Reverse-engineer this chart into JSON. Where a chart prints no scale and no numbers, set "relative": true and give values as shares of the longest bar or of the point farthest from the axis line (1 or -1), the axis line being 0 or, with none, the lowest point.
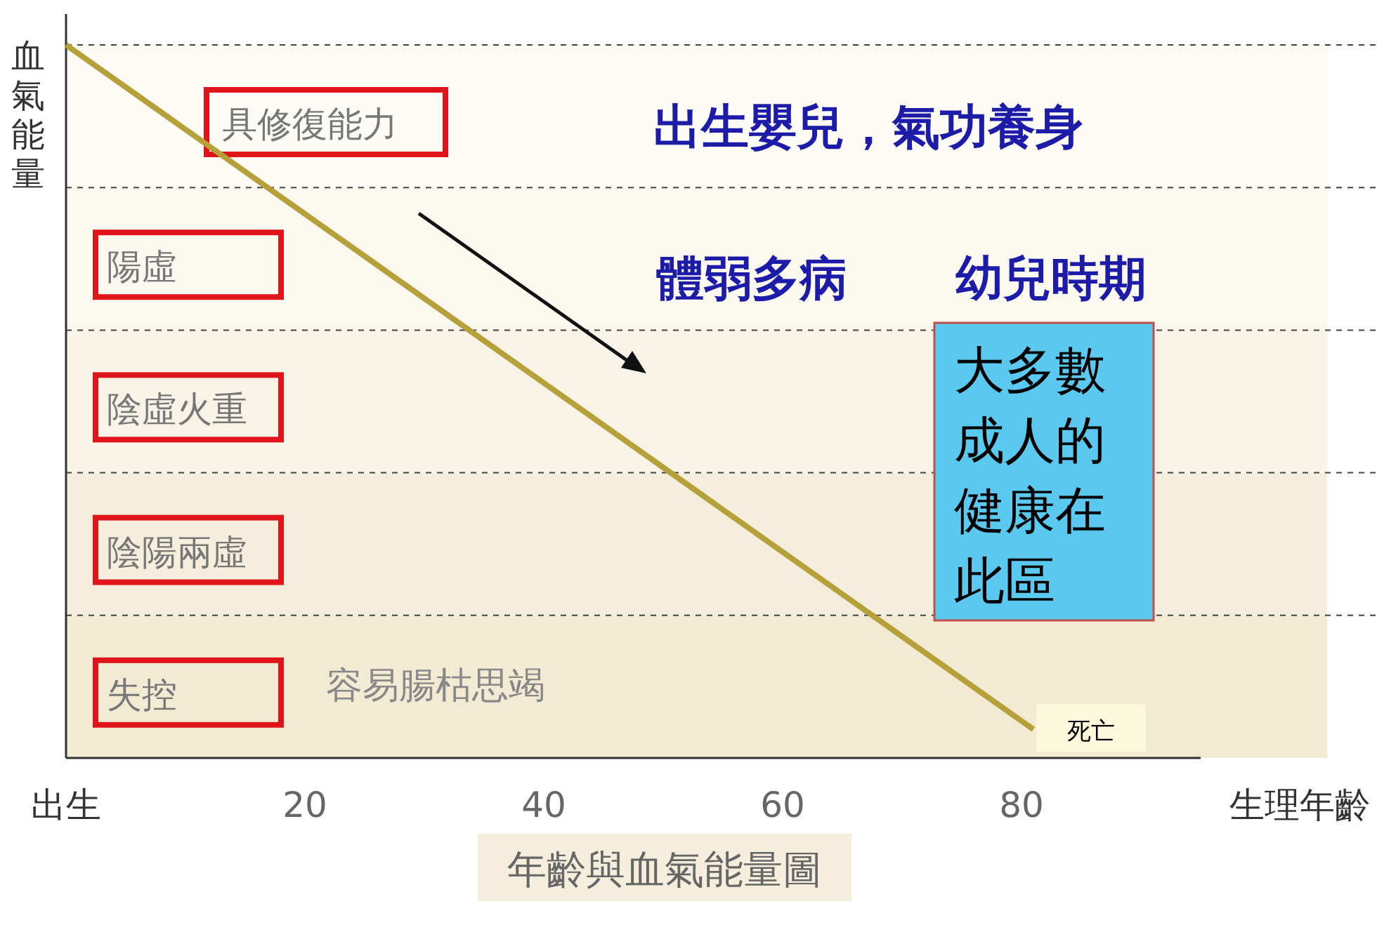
{
  "chart_data": {
    "type": "line",
    "relative": true,
    "title": "年齡與血氣能量圖",
    "xlabel": "生理年齡",
    "ylabel": "血氣能量",
    "x": [
      0,
      81
    ],
    "values": [
      1,
      0.04
    ],
    "color": "#b5a03a",
    "xlim": [
      0,
      95
    ],
    "xticks": [
      {
        "value": 0,
        "label": "出生"
      },
      20,
      40,
      60,
      80
    ],
    "bands": [
      {
        "axis": "y",
        "from": 0.8,
        "to": 1.0,
        "label": "具修復能力",
        "color": "#fdfbf6"
      },
      {
        "axis": "y",
        "from": 0.6,
        "to": 0.8,
        "label": "陽虛",
        "color": "#fbf8f0"
      },
      {
        "axis": "y",
        "from": 0.4,
        "to": 0.6,
        "label": "陰虛火重",
        "color": "#f8f3e6"
      },
      {
        "axis": "y",
        "from": 0.2,
        "to": 0.4,
        "label": "陰陽兩虛",
        "color": "#f5eedc"
      },
      {
        "axis": "y",
        "from": 0.0,
        "to": 0.2,
        "label": "失控",
        "color": "#f2ead3"
      }
    ],
    "annotations": [
      "出生嬰兒，氣功養身",
      "體弱多病",
      "幼兒時期",
      "大多數成人的健康在此區",
      "容易腸枯思竭",
      "死亡"
    ],
    "grid": false,
    "marker": "none",
    "line_style": "solid"
  }
}
